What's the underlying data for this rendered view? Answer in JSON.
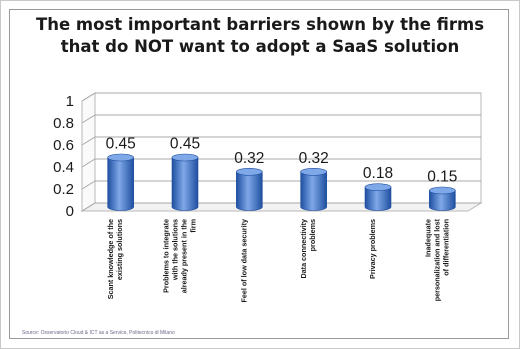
{
  "chart_data": {
    "type": "bar",
    "title_lines": [
      "The most important barriers shown by the firms",
      "that do NOT want to adopt a SaaS solution"
    ],
    "categories": [
      [
        "Scant knowledge of the",
        "existing solutions"
      ],
      [
        "Problems to integrate",
        "with the solutions",
        "already present in the",
        "firm"
      ],
      [
        "Feel of low data security"
      ],
      [
        "Data connectivity",
        "problems"
      ],
      [
        "Privacy problems"
      ],
      [
        "Inadequate",
        "personalization and lost",
        "of differentiation"
      ]
    ],
    "values": [
      0.45,
      0.45,
      0.32,
      0.32,
      0.18,
      0.15
    ],
    "value_labels": [
      "0.45",
      "0.45",
      "0.32",
      "0.32",
      "0.18",
      "0.15"
    ],
    "yticks": [
      "0",
      "0.2",
      "0.4",
      "0.6",
      "0.8",
      "1"
    ],
    "ylim": [
      0,
      1
    ],
    "grid": true,
    "bar_color": "#3f73c6",
    "bar_dark": "#1f4fa0",
    "bar_light": "#7fa8e8",
    "source_note": "Source: Osservatorio Cloud & ICT as a Service, Politecnico di Milano"
  }
}
